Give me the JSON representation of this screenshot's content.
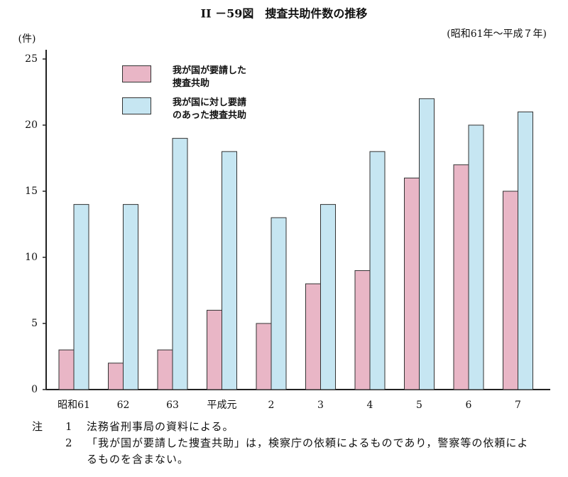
{
  "chart_data": {
    "type": "bar",
    "title": "II －59図　捜査共助件数の推移",
    "subtitle": "(昭和61年～平成７年)",
    "y_label": "(件)",
    "categories": [
      "昭和61",
      "62",
      "63",
      "平成元",
      "2",
      "3",
      "4",
      "5",
      "6",
      "7"
    ],
    "series": [
      {
        "name": "我が国が要請した捜査共助",
        "color": "#e9b6c6",
        "values": [
          3,
          2,
          3,
          6,
          5,
          8,
          9,
          16,
          17,
          15
        ]
      },
      {
        "name": "我が国に対し要請のあった捜査共助",
        "color": "#c6e6f2",
        "values": [
          14,
          14,
          19,
          18,
          13,
          14,
          18,
          22,
          20,
          21
        ]
      }
    ],
    "ylim": [
      0,
      25
    ],
    "yticks": [
      0,
      5,
      10,
      15,
      20,
      25
    ],
    "grid": false,
    "legend": "top-left",
    "note_label": "注",
    "notes": [
      {
        "num": "1",
        "text": "法務省刑事局の資料による。"
      },
      {
        "num": "2",
        "text": "「我が国が要請した捜査共助」は，検察庁の依頼によるものであり，警察等の依頼によるものを含まない。"
      }
    ]
  }
}
